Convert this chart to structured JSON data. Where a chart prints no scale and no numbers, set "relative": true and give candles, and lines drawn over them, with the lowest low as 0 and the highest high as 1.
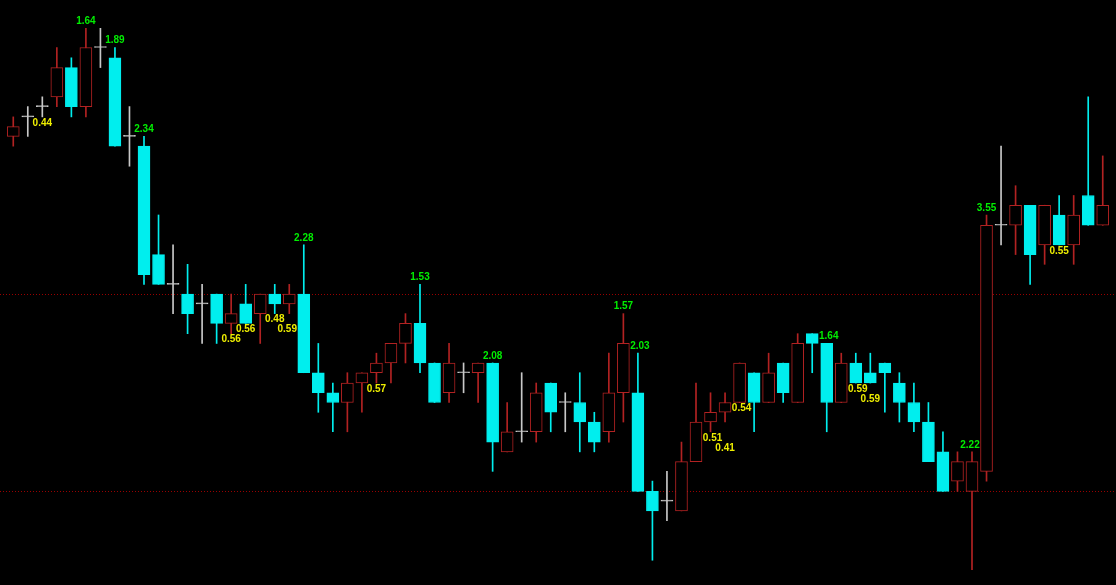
{
  "chart_data": {
    "type": "candlestick",
    "relative": true,
    "categories": [
      null,
      null,
      null,
      null,
      null,
      null,
      null,
      null,
      null,
      null,
      null,
      null,
      null,
      null,
      null,
      null,
      null,
      null,
      null,
      null,
      null,
      null,
      null,
      null,
      null,
      null,
      null,
      null,
      null,
      null,
      null,
      null,
      null,
      null,
      null,
      null,
      null,
      null,
      null,
      null,
      null,
      null,
      null,
      null,
      null,
      null,
      null,
      null,
      null,
      null,
      null,
      null,
      null,
      null,
      null,
      null,
      null,
      null,
      null,
      null,
      null,
      null,
      null,
      null,
      null,
      null,
      null,
      null,
      null,
      null,
      null,
      null,
      null,
      null,
      null,
      null
    ],
    "ohlc": [
      [
        0.8,
        0.836,
        0.782,
        0.818
      ],
      [
        0.836,
        0.855,
        0.8,
        0.836
      ],
      [
        0.855,
        0.873,
        0.836,
        0.855
      ],
      [
        0.873,
        0.964,
        0.855,
        0.927
      ],
      [
        0.927,
        0.945,
        0.836,
        0.855
      ],
      [
        0.855,
        1,
        0.836,
        0.964
      ],
      [
        0.964,
        1,
        0.927,
        0.964
      ],
      [
        0.945,
        0.964,
        0.782,
        0.782
      ],
      [
        0.8,
        0.855,
        0.745,
        0.8
      ],
      [
        0.782,
        0.8,
        0.527,
        0.545
      ],
      [
        0.582,
        0.655,
        0.527,
        0.527
      ],
      [
        0.527,
        0.6,
        0.473,
        0.527
      ],
      [
        0.509,
        0.564,
        0.436,
        0.473
      ],
      [
        0.491,
        0.527,
        0.418,
        0.491
      ],
      [
        0.509,
        0.509,
        0.418,
        0.455
      ],
      [
        0.455,
        0.509,
        0.436,
        0.473
      ],
      [
        0.491,
        0.527,
        0.455,
        0.455
      ],
      [
        0.473,
        0.509,
        0.418,
        0.509
      ],
      [
        0.509,
        0.527,
        0.473,
        0.491
      ],
      [
        0.491,
        0.527,
        0.473,
        0.509
      ],
      [
        0.509,
        0.6,
        0.364,
        0.364
      ],
      [
        0.364,
        0.418,
        0.291,
        0.327
      ],
      [
        0.327,
        0.345,
        0.255,
        0.309
      ],
      [
        0.309,
        0.364,
        0.255,
        0.345
      ],
      [
        0.345,
        0.364,
        0.291,
        0.364
      ],
      [
        0.364,
        0.4,
        0.345,
        0.382
      ],
      [
        0.382,
        0.418,
        0.345,
        0.418
      ],
      [
        0.418,
        0.473,
        0.382,
        0.455
      ],
      [
        0.455,
        0.527,
        0.364,
        0.382
      ],
      [
        0.382,
        0.382,
        0.309,
        0.309
      ],
      [
        0.327,
        0.418,
        0.309,
        0.382
      ],
      [
        0.364,
        0.382,
        0.327,
        0.364
      ],
      [
        0.364,
        0.382,
        0.309,
        0.382
      ],
      [
        0.382,
        0.382,
        0.182,
        0.236
      ],
      [
        0.218,
        0.309,
        0.218,
        0.255
      ],
      [
        0.255,
        0.364,
        0.236,
        0.255
      ],
      [
        0.255,
        0.345,
        0.236,
        0.327
      ],
      [
        0.345,
        0.345,
        0.255,
        0.291
      ],
      [
        0.309,
        0.327,
        0.255,
        0.309
      ],
      [
        0.309,
        0.364,
        0.218,
        0.273
      ],
      [
        0.273,
        0.291,
        0.218,
        0.236
      ],
      [
        0.255,
        0.4,
        0.236,
        0.327
      ],
      [
        0.327,
        0.473,
        0.273,
        0.418
      ],
      [
        0.327,
        0.4,
        0.145,
        0.145
      ],
      [
        0.145,
        0.164,
        0.018,
        0.109
      ],
      [
        0.127,
        0.182,
        0.091,
        0.127
      ],
      [
        0.109,
        0.236,
        0.109,
        0.2
      ],
      [
        0.2,
        0.345,
        0.2,
        0.273
      ],
      [
        0.273,
        0.327,
        0.255,
        0.291
      ],
      [
        0.291,
        0.327,
        0.273,
        0.309
      ],
      [
        0.309,
        0.382,
        0.309,
        0.382
      ],
      [
        0.364,
        0.364,
        0.255,
        0.309
      ],
      [
        0.309,
        0.4,
        0.309,
        0.364
      ],
      [
        0.382,
        0.382,
        0.309,
        0.327
      ],
      [
        0.309,
        0.436,
        0.309,
        0.418
      ],
      [
        0.436,
        0.436,
        0.364,
        0.418
      ],
      [
        0.418,
        0.418,
        0.255,
        0.309
      ],
      [
        0.309,
        0.4,
        0.309,
        0.382
      ],
      [
        0.382,
        0.4,
        0.345,
        0.345
      ],
      [
        0.364,
        0.4,
        0.345,
        0.345
      ],
      [
        0.382,
        0.382,
        0.291,
        0.364
      ],
      [
        0.345,
        0.364,
        0.273,
        0.309
      ],
      [
        0.309,
        0.345,
        0.255,
        0.273
      ],
      [
        0.273,
        0.309,
        0.2,
        0.2
      ],
      [
        0.218,
        0.255,
        0.145,
        0.145
      ],
      [
        0.164,
        0.218,
        0.145,
        0.2
      ],
      [
        0.145,
        0.218,
        0,
        0.2
      ],
      [
        0.182,
        0.655,
        0.164,
        0.636
      ],
      [
        0.636,
        0.782,
        0.6,
        0.636
      ],
      [
        0.636,
        0.709,
        0.582,
        0.673
      ],
      [
        0.673,
        0.673,
        0.527,
        0.582
      ],
      [
        0.6,
        0.673,
        0.564,
        0.673
      ],
      [
        0.655,
        0.691,
        0.6,
        0.6
      ],
      [
        0.6,
        0.691,
        0.564,
        0.655
      ],
      [
        0.691,
        0.873,
        0.636,
        0.636
      ],
      [
        0.636,
        0.764,
        0.636,
        0.673
      ]
    ],
    "colors": [
      "#b22222",
      "#c8c8c8",
      "#c8c8c8",
      "#b22222",
      "#00eeee",
      "#b22222",
      "#c8c8c8",
      "#00eeee",
      "#c8c8c8",
      "#00eeee",
      "#00eeee",
      "#c8c8c8",
      "#00eeee",
      "#c8c8c8",
      "#00eeee",
      "#b22222",
      "#00eeee",
      "#b22222",
      "#00eeee",
      "#b22222",
      "#00eeee",
      "#00eeee",
      "#00eeee",
      "#b22222",
      "#b22222",
      "#b22222",
      "#b22222",
      "#b22222",
      "#00eeee",
      "#00eeee",
      "#b22222",
      "#c8c8c8",
      "#b22222",
      "#00eeee",
      "#b22222",
      "#c8c8c8",
      "#b22222",
      "#00eeee",
      "#c8c8c8",
      "#00eeee",
      "#00eeee",
      "#b22222",
      "#b22222",
      "#00eeee",
      "#00eeee",
      "#c8c8c8",
      "#b22222",
      "#b22222",
      "#b22222",
      "#b22222",
      "#b22222",
      "#00eeee",
      "#b22222",
      "#00eeee",
      "#b22222",
      "#00eeee",
      "#00eeee",
      "#b22222",
      "#00eeee",
      "#00eeee",
      "#00eeee",
      "#00eeee",
      "#00eeee",
      "#00eeee",
      "#00eeee",
      "#b22222",
      "#b22222",
      "#b22222",
      "#c8c8c8",
      "#b22222",
      "#00eeee",
      "#b22222",
      "#00eeee",
      "#b22222",
      "#00eeee",
      "#b22222"
    ],
    "value_labels": [
      null,
      null,
      "0.44",
      null,
      null,
      "1.64",
      null,
      "1.89",
      null,
      "2.34",
      null,
      null,
      null,
      null,
      null,
      "0.56",
      "0.56",
      null,
      "0.48",
      "0.59",
      "2.28",
      null,
      null,
      null,
      null,
      "0.57",
      null,
      null,
      "1.53",
      null,
      null,
      null,
      null,
      "2.08",
      null,
      null,
      null,
      null,
      null,
      null,
      null,
      null,
      "1.57",
      "2.03",
      null,
      null,
      null,
      null,
      "0.51",
      "0.41",
      "0.54",
      null,
      null,
      null,
      null,
      null,
      "1.64",
      null,
      "0.59",
      "0.59",
      null,
      null,
      null,
      null,
      null,
      null,
      "2.22",
      "3.55",
      null,
      null,
      null,
      null,
      "0.55",
      null,
      null,
      null
    ],
    "ref_lines": [
      {
        "axis": "y",
        "value": 0.509,
        "color": "#990000",
        "line_style": "dotted"
      },
      {
        "axis": "y",
        "value": 0.145,
        "color": "#990000",
        "line_style": "dotted"
      }
    ]
  }
}
